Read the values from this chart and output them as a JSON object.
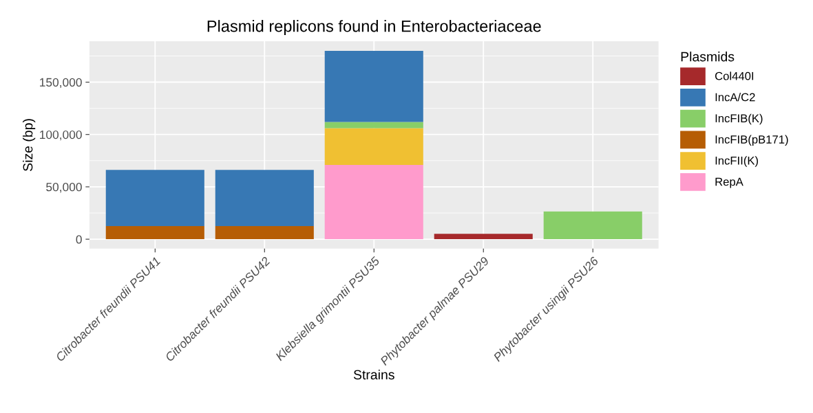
{
  "chart_data": {
    "type": "bar",
    "stacked": true,
    "title": "Plasmid replicons found in Enterobacteriaceae",
    "xlabel": "Strains",
    "ylabel": "Size (bp)",
    "legend_title": "Plasmids",
    "legend": "right",
    "grid": true,
    "categories": [
      "Citrobacter freundii PSU41",
      "Citrobacter freundii PSU42",
      "Klebsiella grimontii PSU35",
      "Phytobacter palmae PSU29",
      "Phytobacter usingii PSU26"
    ],
    "series": [
      {
        "name": "RepA",
        "color": "#ff9bcc",
        "values": [
          null,
          null,
          71000,
          null,
          null
        ]
      },
      {
        "name": "IncFII(K)",
        "color": "#f0c032",
        "values": [
          null,
          null,
          35000,
          null,
          null
        ]
      },
      {
        "name": "IncFIB(pB171)",
        "color": "#b65d04",
        "values": [
          12500,
          12500,
          null,
          null,
          null
        ]
      },
      {
        "name": "IncFIB(K)",
        "color": "#88ce68",
        "values": [
          null,
          null,
          6000,
          null,
          26400
        ]
      },
      {
        "name": "IncA/C2",
        "color": "#3778b4",
        "values": [
          53700,
          53700,
          67800,
          null,
          null
        ]
      },
      {
        "name": "Col440I",
        "color": "#a6292b",
        "values": [
          null,
          null,
          null,
          5200,
          null
        ]
      }
    ],
    "ylim": [
      -9000,
      189000
    ],
    "yticks": [
      {
        "value": 0,
        "label": "0"
      },
      {
        "value": 50000,
        "label": "50,000"
      },
      {
        "value": 100000,
        "label": "100,000"
      },
      {
        "value": 150000,
        "label": "150,000"
      }
    ]
  }
}
